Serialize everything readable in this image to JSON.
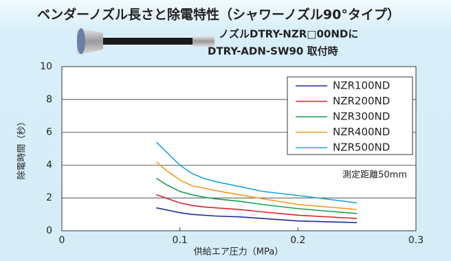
{
  "chart_data": {
    "type": "line",
    "title": "ベンダーノズル長さと除電特性（シャワーノズル90°タイプ）",
    "subtitle": [
      "ノズルDTRY-NZR□00NDに",
      "DTRY-ADN-SW90 取付時"
    ],
    "annotation": "測定距離50mm",
    "x_label": "供給エア圧力（MPa）",
    "y_label": "除電時間（秒）",
    "x": [
      0.08,
      0.09,
      0.1,
      0.11,
      0.12,
      0.13,
      0.15,
      0.17,
      0.2,
      0.25
    ],
    "series": [
      {
        "name": "NZR100ND",
        "color": "#1c2a9c",
        "values": [
          1.4,
          1.25,
          1.1,
          1.0,
          0.95,
          0.9,
          0.85,
          0.75,
          0.6,
          0.5
        ]
      },
      {
        "name": "NZR200ND",
        "color": "#e0202a",
        "values": [
          2.2,
          1.95,
          1.7,
          1.55,
          1.45,
          1.4,
          1.3,
          1.15,
          0.95,
          0.75
        ]
      },
      {
        "name": "NZR300ND",
        "color": "#12a050",
        "values": [
          3.2,
          2.75,
          2.4,
          2.2,
          2.05,
          1.95,
          1.8,
          1.6,
          1.35,
          1.05
        ]
      },
      {
        "name": "NZR400ND",
        "color": "#f39a1e",
        "values": [
          4.2,
          3.6,
          3.1,
          2.75,
          2.6,
          2.45,
          2.2,
          1.95,
          1.6,
          1.3
        ]
      },
      {
        "name": "NZR500ND",
        "color": "#14a6d8",
        "values": [
          5.4,
          4.7,
          4.0,
          3.5,
          3.2,
          3.0,
          2.7,
          2.4,
          2.15,
          1.7
        ]
      }
    ],
    "xlim": [
      0,
      0.3
    ],
    "xticks": [
      0,
      0.1,
      0.2,
      0.3
    ],
    "ylim": [
      0,
      10
    ],
    "yticks": [
      0,
      2,
      4,
      6,
      8,
      10
    ],
    "grid": true,
    "legend": "upper right"
  }
}
